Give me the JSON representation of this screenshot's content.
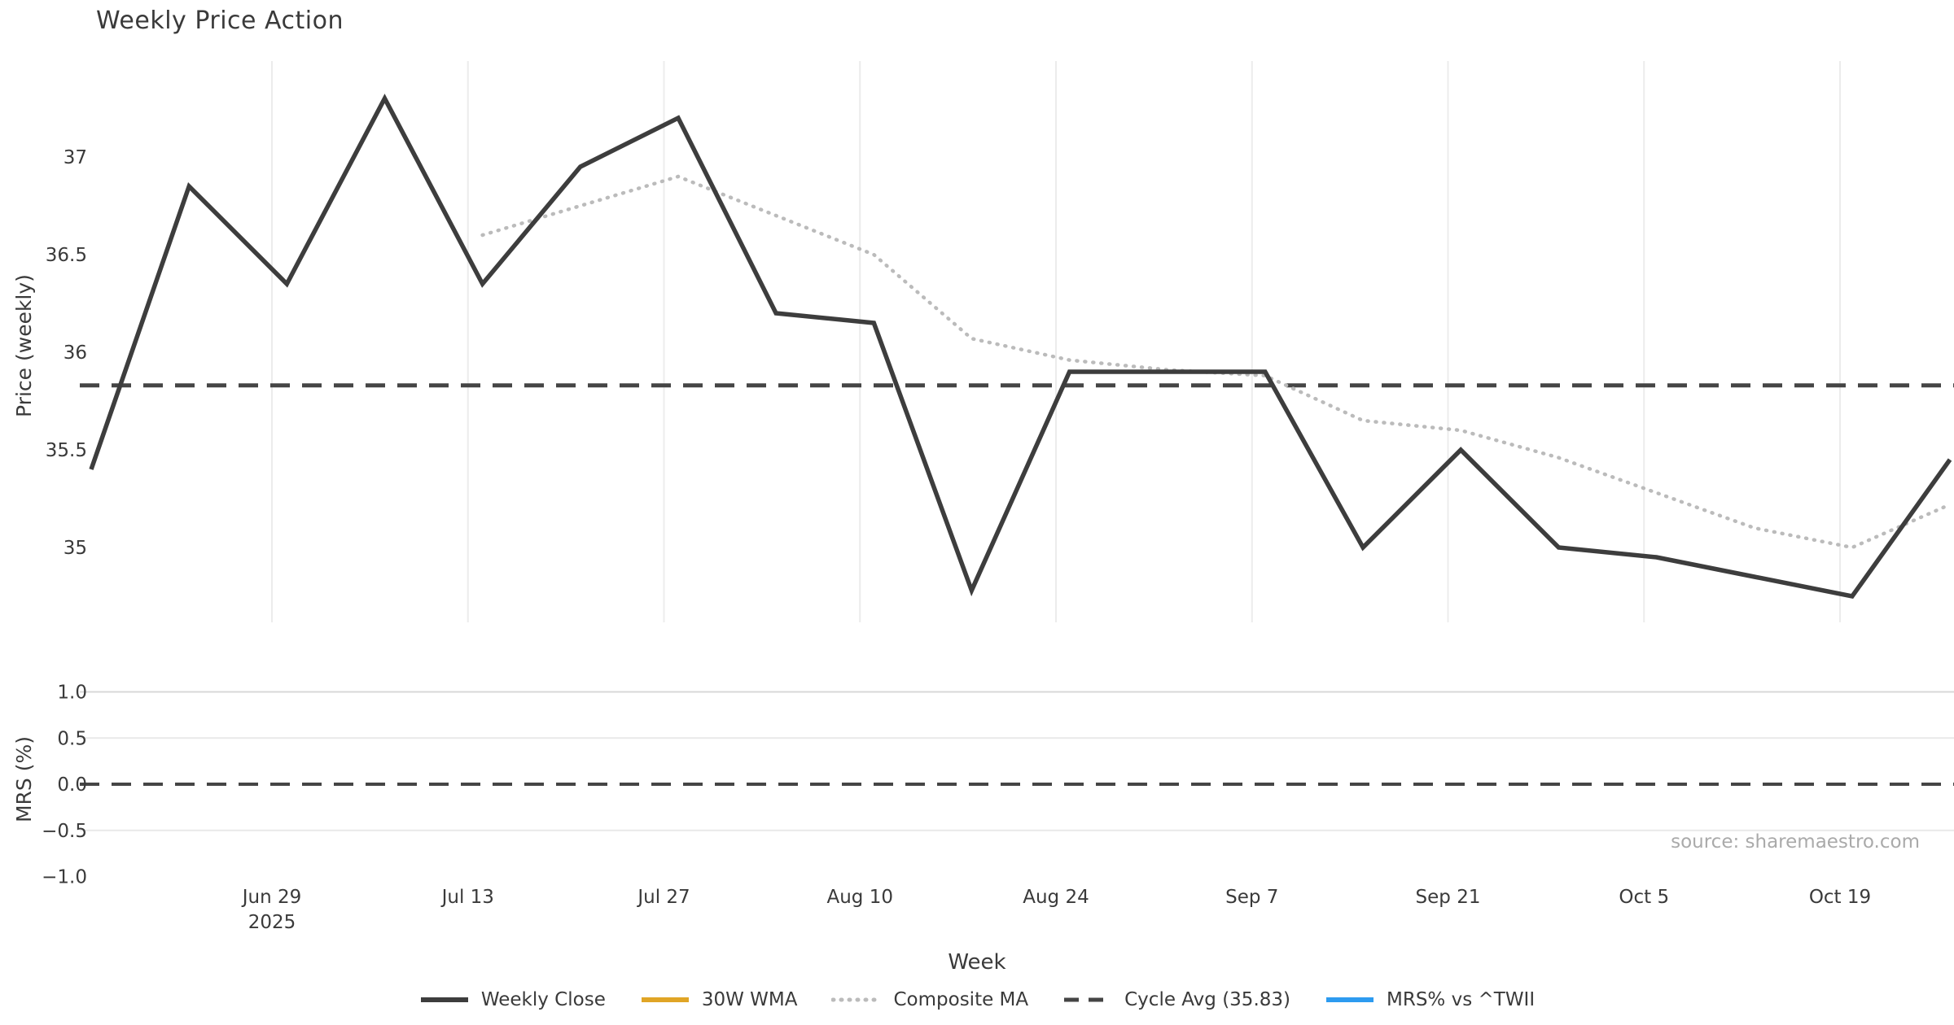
{
  "title": "Weekly Price Action",
  "source_note": "source: sharemaestro.com",
  "xlabel": "Week",
  "colors": {
    "weekly_close": "#3d3d3d",
    "wma_30w": "#E0A526",
    "composite_ma": "#bbbbbb",
    "cycle_avg": "#454545",
    "mrs": "#2D9BF0",
    "grid_vertical": "#ececec",
    "grid_horizontal_major": "#d8d8d8",
    "grid_horizontal_minor": "#e9e9e9",
    "tick_text": "#3a3a3a",
    "source_text": "#aaaaaa"
  },
  "chart_data": [
    {
      "type": "line",
      "panel": "price",
      "title": "Weekly Price Action",
      "xlabel": "Week",
      "ylabel": "Price (weekly)",
      "ylim": [
        34.6,
        37.5
      ],
      "grid": "vertical-only",
      "y_ticks": [
        {
          "label": "37",
          "value": 37.0
        },
        {
          "label": "36.5",
          "value": 36.5
        },
        {
          "label": "36",
          "value": 36.0
        },
        {
          "label": "35.5",
          "value": 35.5
        },
        {
          "label": "35",
          "value": 35.0
        }
      ],
      "x_ticks": [
        {
          "label": "Jun 29",
          "sub": "2025"
        },
        {
          "label": "Jul 13"
        },
        {
          "label": "Jul 27"
        },
        {
          "label": "Aug 10"
        },
        {
          "label": "Aug 24"
        },
        {
          "label": "Sep 7"
        },
        {
          "label": "Sep 21"
        },
        {
          "label": "Oct 5"
        },
        {
          "label": "Oct 19"
        }
      ],
      "n_points": 20,
      "series": [
        {
          "name": "Weekly Close",
          "style": "solid",
          "values": [
            35.4,
            36.85,
            36.35,
            37.3,
            36.35,
            36.95,
            37.2,
            36.2,
            36.15,
            34.78,
            35.9,
            35.9,
            35.9,
            35.0,
            35.5,
            35.0,
            34.95,
            34.85,
            34.75,
            35.45
          ]
        },
        {
          "name": "Composite MA",
          "style": "dotted",
          "values": [
            null,
            null,
            null,
            null,
            36.6,
            36.75,
            36.9,
            36.7,
            36.5,
            36.07,
            35.96,
            35.91,
            35.88,
            35.65,
            35.6,
            35.46,
            35.28,
            35.1,
            35.0,
            35.22
          ]
        }
      ],
      "reference_lines": [
        {
          "name": "Cycle Avg (35.83)",
          "value": 35.83,
          "style": "dashed"
        }
      ]
    },
    {
      "type": "line",
      "panel": "mrs",
      "ylabel": "MRS (%)",
      "ylim": [
        -1.15,
        1.15
      ],
      "y_ticks": [
        {
          "label": "1.0",
          "value": 1.0
        },
        {
          "label": "0.5",
          "value": 0.5
        },
        {
          "label": "0.0",
          "value": 0.0
        },
        {
          "label": "−0.5",
          "value": -0.5
        },
        {
          "label": "−1.0",
          "value": -1.0
        }
      ],
      "series": [],
      "reference_lines": [
        {
          "name": "zero-line",
          "value": 0.0,
          "style": "dashed"
        }
      ]
    }
  ],
  "legend": [
    {
      "label": "Weekly Close",
      "color": "#3d3d3d",
      "style": "solid"
    },
    {
      "label": "30W WMA",
      "color": "#E0A526",
      "style": "solid"
    },
    {
      "label": "Composite MA",
      "color": "#bbbbbb",
      "style": "dotted"
    },
    {
      "label": "Cycle Avg (35.83)",
      "color": "#454545",
      "style": "dashed"
    },
    {
      "label": "MRS% vs ^TWII",
      "color": "#2D9BF0",
      "style": "solid"
    }
  ]
}
